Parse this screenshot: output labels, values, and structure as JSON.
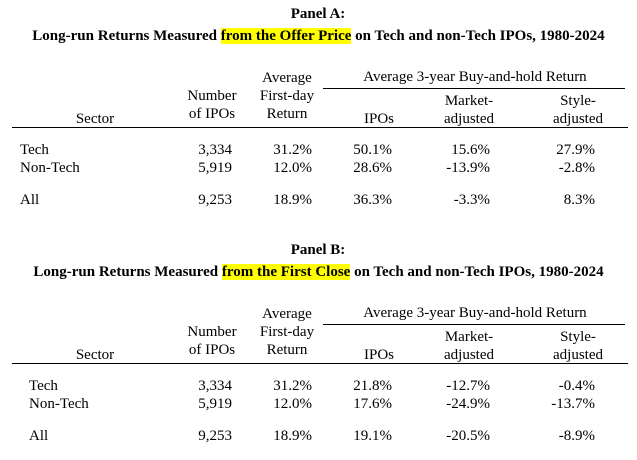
{
  "panels": [
    {
      "label": "Panel A:",
      "title": {
        "before": "Long-run Returns Measured ",
        "highlight": "from the Offer Price",
        "after": " on Tech and non-Tech IPOs, 1980-2024"
      },
      "group_header": "Average 3-year Buy-and-hold Return",
      "columns": [
        [
          "Sector"
        ],
        [
          "Number",
          "of IPOs"
        ],
        [
          "Average",
          "First-day",
          "Return"
        ],
        [
          "IPOs"
        ],
        [
          "Market-",
          "adjusted"
        ],
        [
          "Style-",
          "adjusted"
        ]
      ],
      "rows": [
        [
          "Tech",
          "3,334",
          "31.2%",
          "50.1%",
          "15.6%",
          "27.9%"
        ],
        [
          "Non-Tech",
          "5,919",
          "12.0%",
          "28.6%",
          "-13.9%",
          "-2.8%"
        ],
        [
          "All",
          "9,253",
          "18.9%",
          "36.3%",
          "-3.3%",
          "8.3%"
        ]
      ]
    },
    {
      "label": "Panel B:",
      "title": {
        "before": "Long-run Returns Measured ",
        "highlight": "from the First Close",
        "after": " on Tech and non-Tech IPOs, 1980-2024"
      },
      "group_header": "Average 3-year Buy-and-hold Return",
      "columns": [
        [
          "Sector"
        ],
        [
          "Number",
          "of IPOs"
        ],
        [
          "Average",
          "First-day",
          "Return"
        ],
        [
          "IPOs"
        ],
        [
          "Market-",
          "adjusted"
        ],
        [
          "Style-",
          "adjusted"
        ]
      ],
      "rows": [
        [
          "Tech",
          "3,334",
          "31.2%",
          "21.8%",
          "-12.7%",
          "-0.4%"
        ],
        [
          "Non-Tech",
          "5,919",
          "12.0%",
          "17.6%",
          "-24.9%",
          "-13.7%"
        ],
        [
          "All",
          "9,253",
          "18.9%",
          "19.1%",
          "-20.5%",
          "-8.9%"
        ]
      ]
    }
  ]
}
